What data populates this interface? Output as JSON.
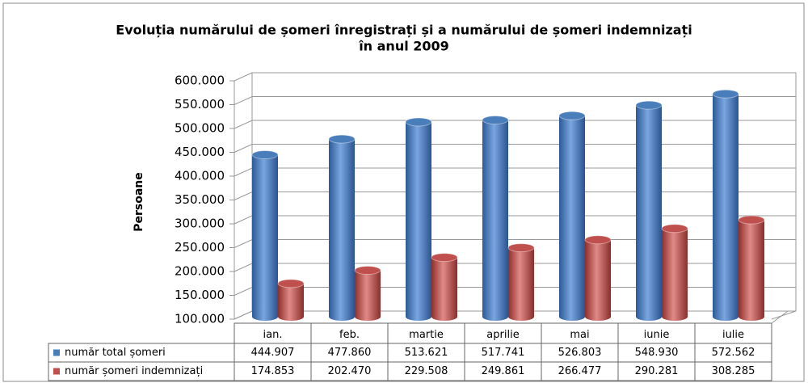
{
  "chart_data": {
    "type": "bar",
    "title": [
      "Evoluția numărului de șomeri înregistrați și a numărului de șomeri indemnizați",
      "în anul 2009"
    ],
    "y_label": "Persoane",
    "categories": [
      "ian.",
      "feb.",
      "martie",
      "aprilie",
      "mai",
      "iunie",
      "iulie"
    ],
    "series": [
      {
        "name": "număr total șomeri",
        "color": "#4a7ebb",
        "values": [
          444907,
          477860,
          513621,
          517741,
          526803,
          548930,
          572562
        ],
        "value_labels": [
          "444.907",
          "477.860",
          "513.621",
          "517.741",
          "526.803",
          "548.930",
          "572.562"
        ]
      },
      {
        "name": "număr șomeri indemnizați",
        "color": "#c0504d",
        "values": [
          174853,
          202470,
          229508,
          249861,
          266477,
          290281,
          308285
        ],
        "value_labels": [
          "174.853",
          "202.470",
          "229.508",
          "249.861",
          "266.477",
          "290.281",
          "308.285"
        ]
      }
    ],
    "ylim": [
      100000,
      600000
    ],
    "yticks": [
      {
        "value": 100000,
        "label": "100.000"
      },
      {
        "value": 150000,
        "label": "150.000"
      },
      {
        "value": 200000,
        "label": "200.000"
      },
      {
        "value": 250000,
        "label": "250.000"
      },
      {
        "value": 300000,
        "label": "300.000"
      },
      {
        "value": 350000,
        "label": "350.000"
      },
      {
        "value": 400000,
        "label": "400.000"
      },
      {
        "value": 450000,
        "label": "450.000"
      },
      {
        "value": 500000,
        "label": "500.000"
      },
      {
        "value": 550000,
        "label": "550.000"
      },
      {
        "value": 600000,
        "label": "600.000"
      }
    ],
    "grid": true
  }
}
